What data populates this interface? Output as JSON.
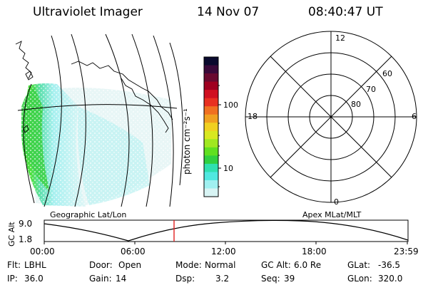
{
  "header": {
    "instrument": "Ultraviolet Imager",
    "date": "14 Nov 07",
    "time": "08:40:47 UT"
  },
  "colorbar": {
    "unit_label": "photon cm⁻²s⁻¹",
    "ticks": [
      "100",
      "10"
    ],
    "colors": [
      "#0a0a2e",
      "#3a0a3a",
      "#6a0a30",
      "#a00020",
      "#d01020",
      "#e83020",
      "#f07020",
      "#f0a020",
      "#f0d020",
      "#d8e820",
      "#a0e820",
      "#60e020",
      "#30d040",
      "#30e0b0",
      "#50e8e0",
      "#a0f0f0",
      "#d8f4f4"
    ]
  },
  "polar_plot": {
    "mlt_labels": {
      "top": "12",
      "right": "6",
      "bottom": "0",
      "left": "18"
    },
    "lat_labels": [
      "60",
      "70",
      "80"
    ]
  },
  "map_label": "Geographic Lat/Lon",
  "polar_label": "Apex MLat/MLT",
  "altitude_chart": {
    "y_axis_label": "GC Alt",
    "y_ticks": [
      "9.0",
      "1.8"
    ],
    "x_ticks": [
      "00:00",
      "06:00",
      "12:00",
      "18:00",
      "23:59"
    ],
    "marker_color": "#e02020"
  },
  "info": {
    "row1": [
      {
        "key": "Flt:",
        "value": "LBHL"
      },
      {
        "key": "Door:",
        "value": "Open"
      },
      {
        "key": "Mode:",
        "value": "Normal"
      },
      {
        "key": "GC Alt:",
        "value": "6.0 Re"
      },
      {
        "key": "GLat:",
        "value": "-36.5"
      }
    ],
    "row2": [
      {
        "key": "IP:",
        "value": "36.0"
      },
      {
        "key": "Gain:",
        "value": "14"
      },
      {
        "key": "Dsp:",
        "value": "3.2"
      },
      {
        "key": "Seq:",
        "value": "39"
      },
      {
        "key": "GLon:",
        "value": "320.0"
      }
    ]
  }
}
